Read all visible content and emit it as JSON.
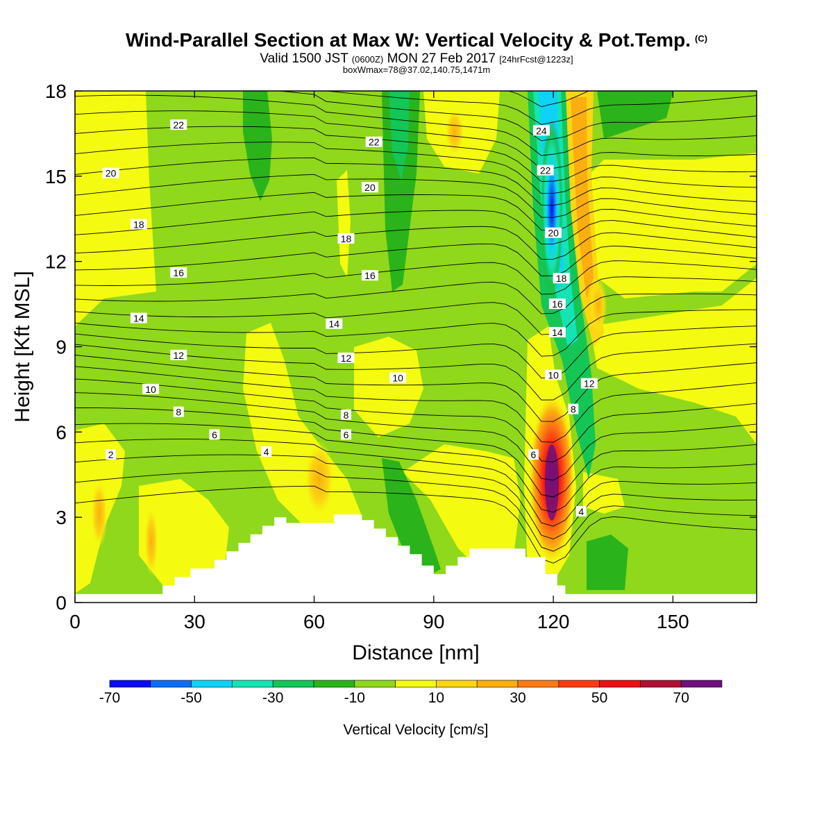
{
  "header": {
    "title": "Wind-Parallel Section at Max W: Vertical Velocity & Pot.Temp.",
    "copyright": "(C)",
    "valid_prefix": "Valid 1500 JST",
    "valid_utc": "(0600Z)",
    "valid_date": "MON 27 Feb 2017",
    "forecast": "[24hrFcst@1223z]",
    "box_max": "boxWmax=78@37.02,140.75,1471m"
  },
  "chart_data": {
    "type": "heatmap",
    "xlabel": "Distance [nm]",
    "ylabel": "Height [Kft MSL]",
    "xlim": [
      0,
      171
    ],
    "ylim": [
      0,
      18
    ],
    "x_ticks": [
      0,
      30,
      60,
      90,
      120,
      150
    ],
    "y_ticks": [
      0,
      3,
      6,
      9,
      12,
      15,
      18
    ],
    "colorbar": {
      "label": "Vertical Velocity [cm/s]",
      "bounds": [
        -70,
        -60,
        -50,
        -40,
        -30,
        -20,
        -10,
        0,
        10,
        20,
        30,
        40,
        50,
        60,
        70,
        80
      ],
      "tick_labels": [
        -70,
        -50,
        -30,
        -10,
        10,
        30,
        50,
        70
      ],
      "colors": [
        "#0b0bf4",
        "#0a6ef5",
        "#0fd2f7",
        "#14e3b4",
        "#13c656",
        "#2bb31c",
        "#90d81b",
        "#f4fb10",
        "#fbd612",
        "#fbae10",
        "#fb7b14",
        "#fa3c14",
        "#eb1013",
        "#b01034",
        "#6e107d"
      ]
    },
    "vertical_velocity_features": [
      {
        "kind": "updraft",
        "x": 120,
        "y": 4.5,
        "w_max": 78
      },
      {
        "kind": "downdraft",
        "x": 120,
        "y": 14,
        "w_min": -70
      },
      {
        "kind": "downdraft",
        "x": 87,
        "y": 15.5,
        "w_min": -30
      },
      {
        "kind": "downdraft",
        "x": 74,
        "y": 17,
        "w_min": -30
      },
      {
        "kind": "updraft",
        "x": 126,
        "y": 13,
        "w_max": 20
      },
      {
        "kind": "updraft",
        "x": 62,
        "y": 4.5,
        "w_max": 20
      }
    ],
    "potential_temperature_labels": [
      {
        "value": "2",
        "x": 9,
        "y": 5.2
      },
      {
        "value": "4",
        "x": 48,
        "y": 5.3
      },
      {
        "value": "4",
        "x": 127,
        "y": 3.2
      },
      {
        "value": "6",
        "x": 35,
        "y": 5.9
      },
      {
        "value": "6",
        "x": 68,
        "y": 5.9
      },
      {
        "value": "6",
        "x": 115,
        "y": 5.2
      },
      {
        "value": "8",
        "x": 26,
        "y": 6.7
      },
      {
        "value": "8",
        "x": 68,
        "y": 6.6
      },
      {
        "value": "8",
        "x": 125,
        "y": 6.8
      },
      {
        "value": "10",
        "x": 19,
        "y": 7.5
      },
      {
        "value": "10",
        "x": 81,
        "y": 7.9
      },
      {
        "value": "10",
        "x": 120,
        "y": 8.0
      },
      {
        "value": "12",
        "x": 26,
        "y": 8.7
      },
      {
        "value": "12",
        "x": 68,
        "y": 8.6
      },
      {
        "value": "12",
        "x": 129,
        "y": 7.7
      },
      {
        "value": "14",
        "x": 16,
        "y": 10.0
      },
      {
        "value": "14",
        "x": 65,
        "y": 9.8
      },
      {
        "value": "14",
        "x": 121,
        "y": 9.5
      },
      {
        "value": "16",
        "x": 26,
        "y": 11.6
      },
      {
        "value": "16",
        "x": 74,
        "y": 11.5
      },
      {
        "value": "16",
        "x": 121,
        "y": 10.5
      },
      {
        "value": "18",
        "x": 16,
        "y": 13.3
      },
      {
        "value": "18",
        "x": 68,
        "y": 12.8
      },
      {
        "value": "18",
        "x": 122,
        "y": 11.4
      },
      {
        "value": "20",
        "x": 9,
        "y": 15.1
      },
      {
        "value": "20",
        "x": 74,
        "y": 14.6
      },
      {
        "value": "20",
        "x": 120,
        "y": 13.0
      },
      {
        "value": "22",
        "x": 26,
        "y": 16.8
      },
      {
        "value": "22",
        "x": 75,
        "y": 16.2
      },
      {
        "value": "22",
        "x": 118,
        "y": 15.2
      },
      {
        "value": "24",
        "x": 117,
        "y": 16.6
      }
    ],
    "terrain": [
      [
        0,
        0.3
      ],
      [
        22,
        0.3
      ],
      [
        22,
        0.6
      ],
      [
        25,
        0.6
      ],
      [
        25,
        0.9
      ],
      [
        29,
        0.9
      ],
      [
        29,
        1.2
      ],
      [
        35,
        1.2
      ],
      [
        35,
        1.5
      ],
      [
        38,
        1.5
      ],
      [
        38,
        1.8
      ],
      [
        41,
        1.8
      ],
      [
        41,
        2.1
      ],
      [
        44,
        2.1
      ],
      [
        44,
        2.4
      ],
      [
        47,
        2.4
      ],
      [
        47,
        2.7
      ],
      [
        50,
        2.7
      ],
      [
        50,
        3.0
      ],
      [
        53,
        3.0
      ],
      [
        53,
        2.8
      ],
      [
        65,
        2.8
      ],
      [
        65,
        3.1
      ],
      [
        72,
        3.1
      ],
      [
        72,
        2.9
      ],
      [
        75,
        2.9
      ],
      [
        75,
        2.6
      ],
      [
        78,
        2.6
      ],
      [
        78,
        2.3
      ],
      [
        81,
        2.3
      ],
      [
        81,
        2.0
      ],
      [
        84,
        2.0
      ],
      [
        84,
        1.7
      ],
      [
        87,
        1.7
      ],
      [
        87,
        1.3
      ],
      [
        90,
        1.3
      ],
      [
        90,
        1.0
      ],
      [
        93,
        1.0
      ],
      [
        93,
        1.3
      ],
      [
        96,
        1.3
      ],
      [
        96,
        1.6
      ],
      [
        99,
        1.6
      ],
      [
        99,
        1.9
      ],
      [
        113,
        1.9
      ],
      [
        113,
        1.6
      ],
      [
        118,
        1.6
      ],
      [
        118,
        1.0
      ],
      [
        121,
        1.0
      ],
      [
        121,
        0.6
      ],
      [
        123,
        0.6
      ],
      [
        123,
        0.3
      ],
      [
        171,
        0.3
      ]
    ]
  }
}
